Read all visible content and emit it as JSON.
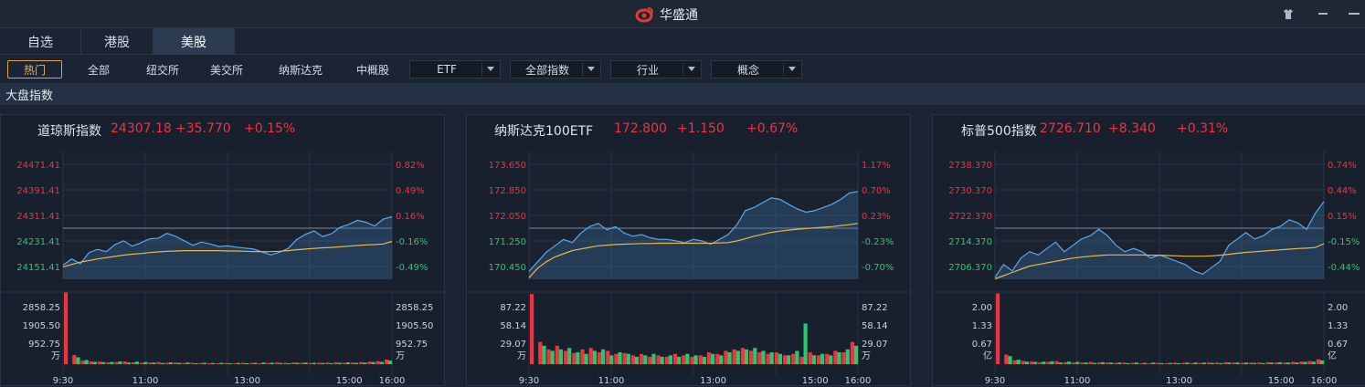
{
  "app": {
    "title": "华盛通",
    "brand_color": "#e53935"
  },
  "window_controls": [
    "shirt-icon",
    "minimize-icon",
    "close-icon"
  ],
  "tabs": [
    {
      "label": "自选",
      "active": false
    },
    {
      "label": "港股",
      "active": false
    },
    {
      "label": "美股",
      "active": true
    }
  ],
  "filters": {
    "buttons": [
      {
        "label": "热门",
        "active": true
      },
      {
        "label": "全部",
        "active": false
      },
      {
        "label": "纽交所",
        "active": false
      },
      {
        "label": "美交所",
        "active": false
      },
      {
        "label": "纳斯达克",
        "active": false
      },
      {
        "label": "中概股",
        "active": false
      }
    ],
    "dropdowns": [
      {
        "label": "ETF"
      },
      {
        "label": "全部指数"
      },
      {
        "label": "行业"
      },
      {
        "label": "概念"
      }
    ]
  },
  "section_title": "大盘指数",
  "colors": {
    "up": "#f0333f",
    "down": "#2fc56e",
    "price_line": "#5aa8ec",
    "avg_line": "#e8b84a"
  },
  "panels": [
    {
      "name": "道琼斯指数",
      "price": "24307.18",
      "change": "+35.770",
      "change_pct": "+0.15%",
      "chart_data": {
        "type": "line",
        "price_ticks_left": [
          "24471.41",
          "24391.41",
          "24311.41",
          "24231.41",
          "24151.41"
        ],
        "pct_ticks_right": [
          "0.82%",
          "0.49%",
          "0.16%",
          "-0.16%",
          "-0.49%"
        ],
        "ylim": [
          24111.41,
          24511.41
        ],
        "prev_close": 24271.41,
        "volume_ticks": [
          "2858.25",
          "1905.50",
          "952.75"
        ],
        "volume_unit": "万",
        "volume_max": 3200,
        "time_ticks": [
          "9:30",
          "11:00",
          "13:00",
          "15:00",
          "16:00"
        ],
        "series": [
          {
            "values": [
              24156,
              24175,
              24160,
              24195,
              24205,
              24198,
              24220,
              24232,
              24215,
              24226,
              24238,
              24240,
              24255,
              24246,
              24232,
              24218,
              24228,
              24222,
              24214,
              24216,
              24212,
              24209,
              24206,
              24197,
              24188,
              24196,
              24208,
              24236,
              24252,
              24263,
              24245,
              24254,
              24274,
              24283,
              24296,
              24290,
              24278,
              24300,
              24307
            ]
          },
          {
            "values": [
              24150,
              24158,
              24165,
              24170,
              24175,
              24179,
              24183,
              24187,
              24190,
              24192,
              24195,
              24197,
              24199,
              24200,
              24201,
              24201,
              24201,
              24201,
              24201,
              24200,
              24200,
              24199,
              24198,
              24198,
              24198,
              24199,
              24201,
              24204,
              24206,
              24208,
              24210,
              24211,
              24213,
              24215,
              24217,
              24219,
              24220,
              24222,
              24230
            ]
          }
        ],
        "volume_red": [
          3100,
          400,
          150,
          120,
          110,
          80,
          90,
          120,
          80,
          60,
          70,
          90,
          60,
          70,
          50,
          60,
          50,
          40,
          40,
          50,
          40,
          60,
          50,
          40,
          50,
          70,
          60,
          80,
          60,
          50,
          60,
          70,
          80,
          60,
          70,
          90,
          110,
          130,
          200
        ],
        "volume_green": [
          0,
          300,
          180,
          100,
          90,
          100,
          120,
          70,
          110,
          90,
          70,
          50,
          80,
          60,
          70,
          40,
          60,
          50,
          60,
          40,
          50,
          40,
          60,
          70,
          60,
          50,
          40,
          60,
          70,
          60,
          50,
          40,
          60,
          80,
          60,
          70,
          90,
          100,
          160
        ]
      }
    },
    {
      "name": "纳斯达克100ETF",
      "price": "172.800",
      "change": "+1.150",
      "change_pct": "+0.67%",
      "chart_data": {
        "type": "line",
        "price_ticks_left": [
          "173.650",
          "172.850",
          "172.050",
          "171.250",
          "170.450"
        ],
        "pct_ticks_right": [
          "1.17%",
          "0.70%",
          "0.23%",
          "-0.23%",
          "-0.70%"
        ],
        "ylim": [
          170.05,
          174.05
        ],
        "prev_close": 171.65,
        "volume_ticks": [
          "87.22",
          "58.14",
          "29.07"
        ],
        "volume_unit": "万",
        "volume_max": 100,
        "time_ticks": [
          "9:30",
          "11:00",
          "13:00",
          "15:00",
          "16:00"
        ],
        "series": [
          {
            "values": [
              170.3,
              170.6,
              170.9,
              171.1,
              171.3,
              171.2,
              171.5,
              171.7,
              171.8,
              171.6,
              171.7,
              171.5,
              171.4,
              171.45,
              171.35,
              171.3,
              171.3,
              171.25,
              171.2,
              171.3,
              171.25,
              171.15,
              171.3,
              171.45,
              171.75,
              172.2,
              172.3,
              172.45,
              172.6,
              172.55,
              172.4,
              172.25,
              172.15,
              172.2,
              172.3,
              172.4,
              172.55,
              172.75,
              172.8
            ]
          },
          {
            "values": [
              170.1,
              170.4,
              170.6,
              170.75,
              170.85,
              170.95,
              171.0,
              171.05,
              171.1,
              171.12,
              171.14,
              171.15,
              171.16,
              171.17,
              171.17,
              171.18,
              171.18,
              171.18,
              171.18,
              171.18,
              171.18,
              171.18,
              171.19,
              171.2,
              171.25,
              171.32,
              171.4,
              171.46,
              171.52,
              171.56,
              171.59,
              171.62,
              171.64,
              171.66,
              171.68,
              171.7,
              171.73,
              171.76,
              171.8
            ]
          }
        ],
        "volume_red": [
          95,
          30,
          20,
          25,
          18,
          15,
          20,
          22,
          16,
          18,
          14,
          15,
          12,
          14,
          10,
          12,
          10,
          14,
          12,
          10,
          12,
          16,
          14,
          18,
          20,
          22,
          18,
          16,
          14,
          16,
          12,
          14,
          10,
          16,
          12,
          14,
          18,
          16,
          30
        ],
        "volume_green": [
          0,
          25,
          18,
          20,
          22,
          16,
          14,
          18,
          20,
          12,
          16,
          14,
          10,
          12,
          14,
          10,
          12,
          10,
          14,
          12,
          10,
          14,
          12,
          16,
          18,
          20,
          22,
          18,
          16,
          14,
          12,
          18,
          55,
          12,
          14,
          12,
          16,
          20,
          25
        ]
      }
    },
    {
      "name": "标普500指数",
      "price": "2726.710",
      "change": "+8.340",
      "change_pct": "+0.31%",
      "chart_data": {
        "type": "line",
        "price_ticks_left": [
          "2738.370",
          "2730.370",
          "2722.370",
          "2714.370",
          "2706.370"
        ],
        "pct_ticks_right": [
          "0.74%",
          "0.44%",
          "0.15%",
          "-0.15%",
          "-0.44%"
        ],
        "ylim": [
          2702.37,
          2742.37
        ],
        "prev_close": 2718.37,
        "volume_ticks": [
          "2.00",
          "1.33",
          "0.67"
        ],
        "volume_unit": "亿",
        "volume_max": 2.3,
        "time_ticks": [
          "9:30",
          "11:00",
          "13:00",
          "15:00",
          "16:00"
        ],
        "series": [
          {
            "values": [
              2703,
              2707,
              2705,
              2709,
              2711,
              2710,
              2712,
              2714,
              2711,
              2713,
              2715,
              2716,
              2718,
              2716,
              2713,
              2711,
              2712,
              2711,
              2709,
              2710,
              2709,
              2708,
              2707,
              2705,
              2704,
              2706,
              2708,
              2713,
              2715,
              2717,
              2715,
              2716,
              2718,
              2719,
              2721,
              2720,
              2718,
              2723,
              2726.7
            ]
          },
          {
            "values": [
              2702.5,
              2703.5,
              2704.5,
              2705.5,
              2706.5,
              2707,
              2707.5,
              2708,
              2708.5,
              2709,
              2709.3,
              2709.6,
              2709.8,
              2710,
              2710,
              2710,
              2710,
              2710,
              2709.9,
              2709.9,
              2709.8,
              2709.7,
              2709.6,
              2709.6,
              2709.6,
              2709.7,
              2709.9,
              2710.2,
              2710.5,
              2710.8,
              2711,
              2711.2,
              2711.4,
              2711.6,
              2711.8,
              2712,
              2712.1,
              2712.3,
              2713.5
            ]
          }
        ],
        "volume_red": [
          2.2,
          0.3,
          0.12,
          0.1,
          0.08,
          0.06,
          0.07,
          0.09,
          0.06,
          0.05,
          0.05,
          0.07,
          0.05,
          0.05,
          0.04,
          0.05,
          0.04,
          0.03,
          0.03,
          0.04,
          0.03,
          0.05,
          0.04,
          0.03,
          0.04,
          0.05,
          0.05,
          0.06,
          0.05,
          0.04,
          0.05,
          0.05,
          0.06,
          0.05,
          0.05,
          0.07,
          0.08,
          0.1,
          0.15
        ],
        "volume_green": [
          0,
          0.25,
          0.14,
          0.08,
          0.07,
          0.08,
          0.09,
          0.05,
          0.08,
          0.07,
          0.05,
          0.04,
          0.06,
          0.05,
          0.05,
          0.03,
          0.05,
          0.04,
          0.05,
          0.03,
          0.04,
          0.03,
          0.05,
          0.05,
          0.05,
          0.04,
          0.03,
          0.05,
          0.05,
          0.05,
          0.04,
          0.03,
          0.05,
          0.06,
          0.05,
          0.05,
          0.07,
          0.08,
          0.12
        ]
      }
    }
  ]
}
